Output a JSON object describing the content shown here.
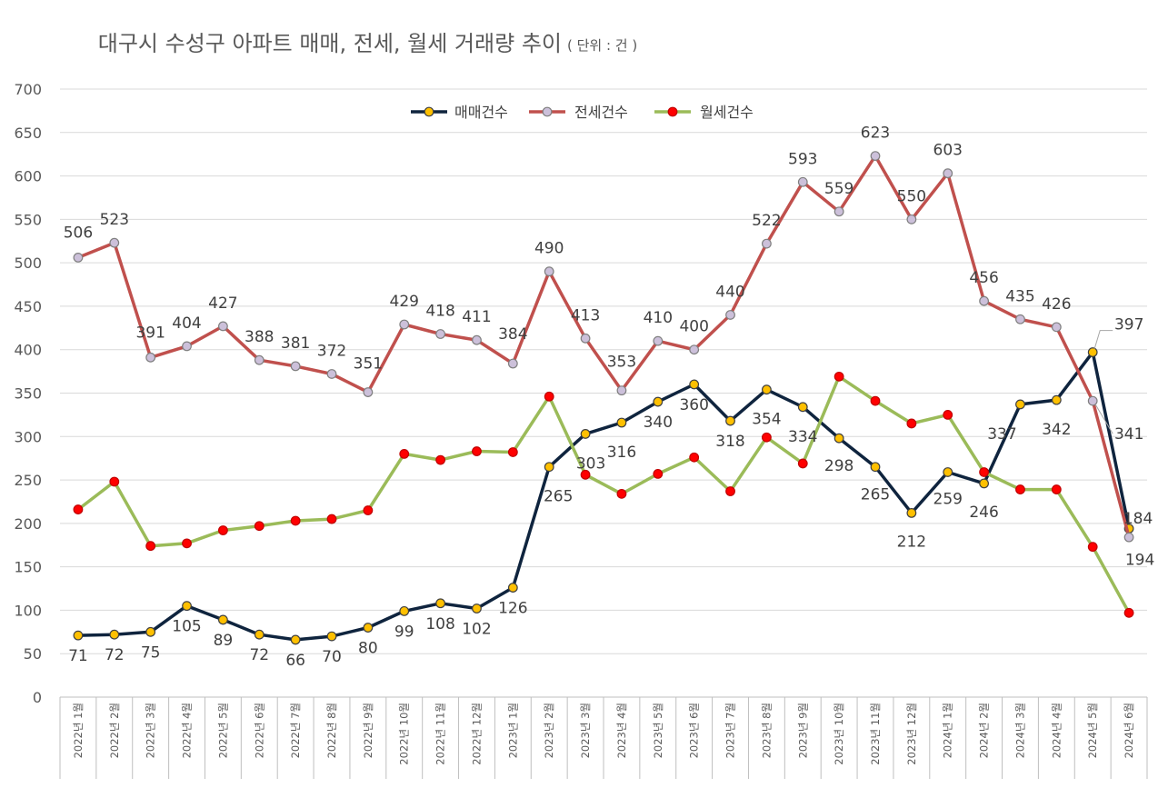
{
  "chart_data": {
    "type": "line",
    "title": "대구시 수성구 아파트 매매, 전세, 월세 거래량 추이",
    "title_unit": "( 단위 : 건 )",
    "ylim": [
      0,
      700
    ],
    "yticks": [
      0,
      50,
      100,
      150,
      200,
      250,
      300,
      350,
      400,
      450,
      500,
      550,
      600,
      650,
      700
    ],
    "grid": "horizontal",
    "legend_position": "top-center",
    "categories": [
      "2022년 1월",
      "2022년 2월",
      "2022년 3월",
      "2022년 4월",
      "2022년 5월",
      "2022년 6월",
      "2022년 7월",
      "2022년 8월",
      "2022년 9월",
      "2022년 10월",
      "2022년 11월",
      "2022년 12월",
      "2023년 1월",
      "2023년 2월",
      "2023년 3월",
      "2023년 4월",
      "2023년 5월",
      "2023년 6월",
      "2023년 7월",
      "2023년 8월",
      "2023년 9월",
      "2023년 10월",
      "2023년 11월",
      "2023년 12월",
      "2024년 1월",
      "2024년 2월",
      "2024년 3월",
      "2024년 4월",
      "2024년 5월",
      "2024년 6월"
    ],
    "series": [
      {
        "name": "매매건수",
        "line_color": "#0f243e",
        "marker_fill": "#ffc000",
        "marker_stroke": "#404040",
        "values": [
          71,
          72,
          75,
          105,
          89,
          72,
          66,
          70,
          80,
          99,
          108,
          102,
          126,
          265,
          303,
          316,
          340,
          360,
          318,
          354,
          334,
          298,
          265,
          212,
          259,
          246,
          337,
          342,
          397,
          194
        ],
        "labels": [
          "71",
          "72",
          "75",
          "105",
          "89",
          "72",
          "66",
          "70",
          "80",
          "99",
          "108",
          "102",
          "126",
          "265",
          "303",
          "316",
          "340",
          "360",
          "318",
          "354",
          "334",
          "298",
          "265",
          "212",
          "259",
          "246",
          "337",
          "342",
          "397",
          "194"
        ]
      },
      {
        "name": "전세건수",
        "line_color": "#c0504d",
        "marker_fill": "#ccc0da",
        "marker_stroke": "#7f7f7f",
        "values": [
          506,
          523,
          391,
          404,
          427,
          388,
          381,
          372,
          351,
          429,
          418,
          411,
          384,
          490,
          413,
          353,
          410,
          400,
          440,
          522,
          593,
          559,
          623,
          550,
          603,
          456,
          435,
          426,
          341,
          184
        ],
        "labels": [
          "506",
          "523",
          "391",
          "404",
          "427",
          "388",
          "381",
          "372",
          "351",
          "429",
          "418",
          "411",
          "384",
          "490",
          "413",
          "353",
          "410",
          "400",
          "440",
          "522",
          "593",
          "559",
          "623",
          "550",
          "603",
          "456",
          "435",
          "426",
          "341",
          "184"
        ]
      },
      {
        "name": "월세건수",
        "line_color": "#9bbb59",
        "marker_fill": "#ff0000",
        "marker_stroke": "#c00000",
        "values": [
          216,
          248,
          174,
          177,
          192,
          197,
          203,
          205,
          215,
          280,
          273,
          283,
          282,
          346,
          256,
          234,
          257,
          276,
          237,
          299,
          269,
          369,
          341,
          315,
          325,
          259,
          239,
          239,
          173,
          97
        ],
        "labels": []
      }
    ]
  }
}
